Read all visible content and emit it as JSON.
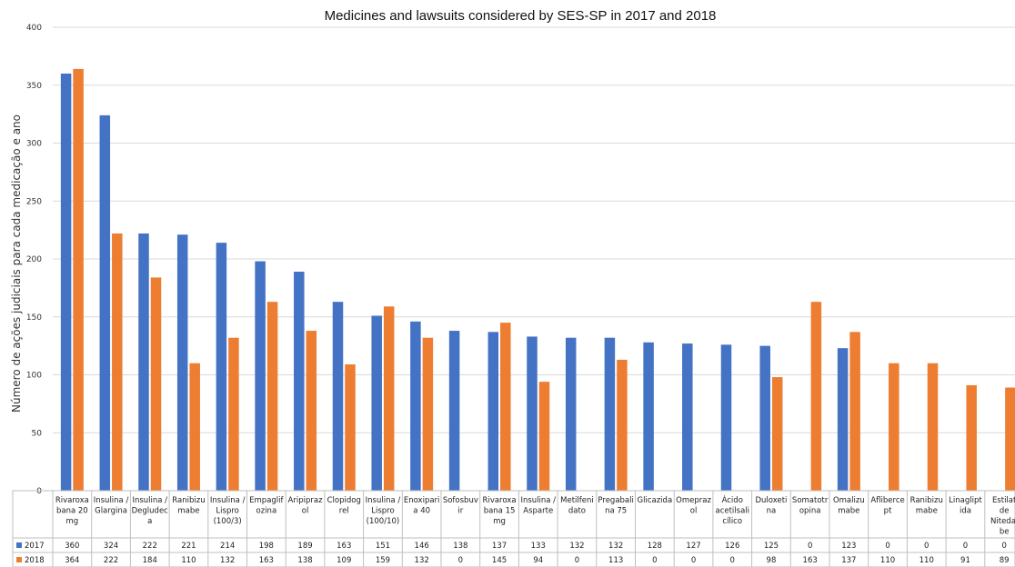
{
  "chart_data": {
    "type": "bar",
    "title": "Medicines and lawsuits considered by SES-SP in 2017 and 2018",
    "ylabel": "Número de ações judiciais para cada medicação e ano",
    "xlabel": "",
    "ylim": [
      0,
      400
    ],
    "yticks": [
      "0",
      "50",
      "100",
      "150",
      "200",
      "250",
      "300",
      "350",
      "400"
    ],
    "grid": true,
    "legend": "bottom-left (data table)",
    "categories": [
      "Rivaroxa|bana 20|mg",
      "Insulina /|Glargina",
      "Insulina /|Degludec|a",
      "Ranibizu|mabe",
      "Insulina /|Lispro|(100/3)",
      "Empaglif|ozina",
      "Aripipraz|ol",
      "Clopidog|rel",
      "Insulina /|Lispro|(100/10)",
      "Enoxipari|a 40",
      "Sofosbuv|ir",
      "Rivaroxa|bana 15|mg",
      "Insulina /|Asparte",
      "Metilfeni|dato",
      "Pregabali|na 75",
      "Glicazida",
      "Omepraz|ol",
      "Ácido|acetilsali|cílico",
      "Duloxeti|na",
      "Somatotr|opina",
      "Omalizu|mabe",
      "Aflibercе|pt",
      "Ranibizu|mabe",
      "Linaglipt|ida",
      "Estilat|de|Nitedai|be"
    ],
    "series": [
      {
        "name": "2017",
        "color": "#4472c4",
        "values": [
          360,
          324,
          222,
          221,
          214,
          198,
          189,
          163,
          151,
          146,
          138,
          137,
          133,
          132,
          132,
          128,
          127,
          126,
          125,
          0,
          123,
          0,
          0,
          0,
          0
        ]
      },
      {
        "name": "2018",
        "color": "#ed7d31",
        "values": [
          364,
          222,
          184,
          110,
          132,
          163,
          138,
          109,
          159,
          132,
          0,
          145,
          94,
          0,
          113,
          0,
          0,
          0,
          98,
          163,
          137,
          110,
          110,
          91,
          89
        ]
      }
    ]
  }
}
